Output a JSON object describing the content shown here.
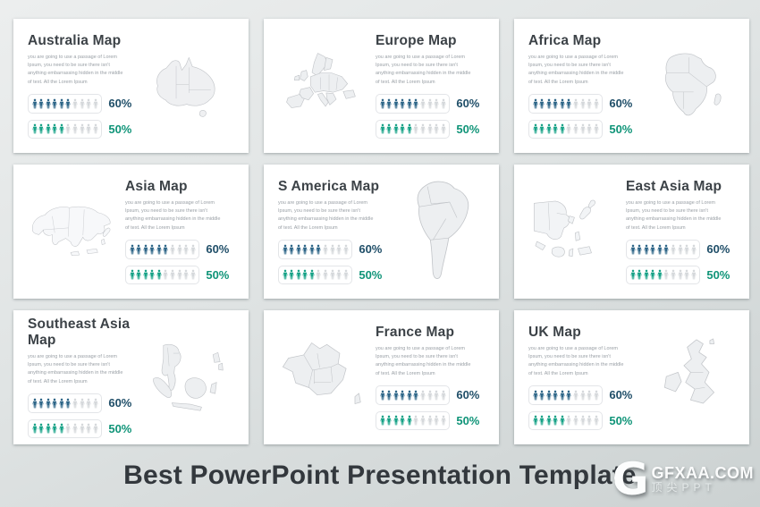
{
  "cards": [
    {
      "title": "Australia Map",
      "map": "australia",
      "map_side": "right"
    },
    {
      "title": "Europe Map",
      "map": "europe",
      "map_side": "left"
    },
    {
      "title": "Africa Map",
      "map": "africa",
      "map_side": "right"
    },
    {
      "title": "Asia Map",
      "map": "asia",
      "map_side": "left"
    },
    {
      "title": "S America Map",
      "map": "samerica",
      "map_side": "right"
    },
    {
      "title": "East Asia Map",
      "map": "eastasia",
      "map_side": "left"
    },
    {
      "title": "Southeast Asia Map",
      "map": "southeastasia",
      "map_side": "right"
    },
    {
      "title": "France Map",
      "map": "france",
      "map_side": "left"
    },
    {
      "title": "UK Map",
      "map": "uk",
      "map_side": "right"
    }
  ],
  "card_shared": {
    "description": "you are going to use a passage of Lorem Ipsum, you need to be sure there isn't anything embarrassing hidden in the middle of text. All the Lorem Ipsum",
    "stats": [
      {
        "label": "60%",
        "filled": 6,
        "total": 10,
        "icon_color": "#2e6688",
        "label_color": "#1f4e68"
      },
      {
        "label": "50%",
        "filled": 5,
        "total": 10,
        "icon_color": "#17a287",
        "label_color": "#0f9478"
      }
    ],
    "empty_icon_color": "#d5d8db"
  },
  "footer": {
    "title": "Best PowerPoint Presentation Template"
  },
  "watermark": {
    "logo_letter": "G",
    "site": "GFXAA.COM",
    "tagline": "顶尖PPT"
  },
  "colors": {
    "card_background": "#ffffff",
    "page_background": "#dde1e1",
    "title_text": "#3c4247",
    "description_text": "#9aa0a6",
    "map_fill": "#edeff1",
    "map_stroke": "#c2c5c9"
  }
}
